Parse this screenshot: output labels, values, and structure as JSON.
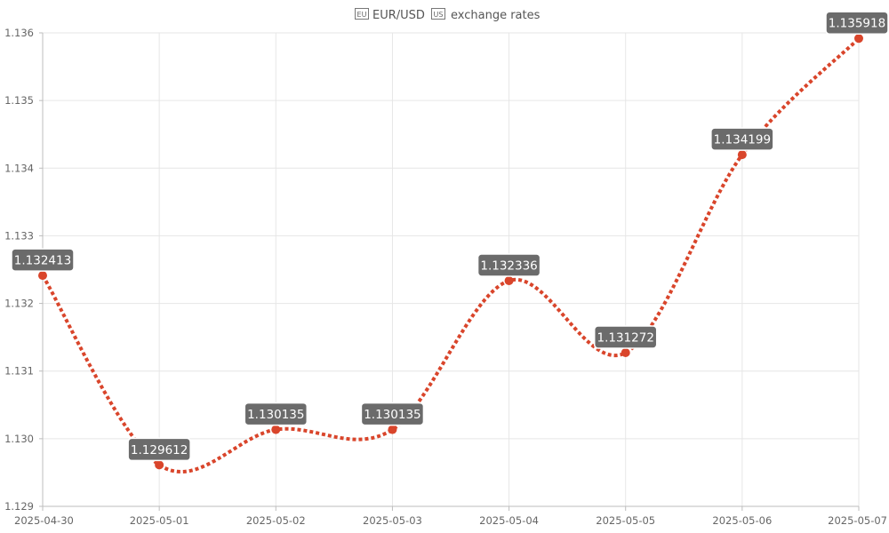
{
  "chart_data": {
    "type": "line",
    "title": "🇪🇺 EUR/USD 🇺🇸 exchange rates",
    "title_parts": {
      "flag_left": "EU",
      "text": "EUR/USD",
      "flag_right": "US",
      "suffix": "exchange rates"
    },
    "x": [
      "2025-04-30",
      "2025-05-01",
      "2025-05-02",
      "2025-05-03",
      "2025-05-04",
      "2025-05-05",
      "2025-05-06",
      "2025-05-07"
    ],
    "series": [
      {
        "values": [
          1.132413,
          1.129612,
          1.130135,
          1.130135,
          1.132336,
          1.131272,
          1.134199,
          1.135918
        ],
        "labels": [
          "1.132413",
          "1.129612",
          "1.130135",
          "1.130135",
          "1.132336",
          "1.131272",
          "1.134199",
          "1.135918"
        ],
        "color": "#d9452b",
        "line_style": "dotted"
      }
    ],
    "ylim": [
      1.129,
      1.136
    ],
    "y_ticks": [
      1.129,
      1.13,
      1.131,
      1.132,
      1.133,
      1.134,
      1.135,
      1.136
    ],
    "y_tick_labels": [
      "1.129",
      "1.130",
      "1.131",
      "1.132",
      "1.133",
      "1.134",
      "1.135",
      "1.136"
    ],
    "xlabel": "",
    "ylabel": "",
    "grid": true,
    "legend": "none",
    "label_box_color": "#6b6b6b"
  }
}
